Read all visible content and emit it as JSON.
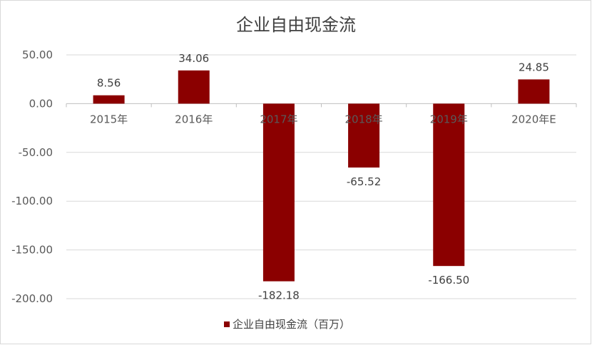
{
  "chart_data": {
    "type": "bar",
    "title": "企业自由现金流",
    "categories": [
      "2015年",
      "2016年",
      "2017年",
      "2018年",
      "2019年",
      "2020年E"
    ],
    "series": [
      {
        "name": "企业自由现金流（百万）",
        "values": [
          8.56,
          34.06,
          -182.18,
          -65.52,
          -166.5,
          24.85
        ],
        "labels": [
          "8.56",
          "34.06",
          "-182.18",
          "-65.52",
          "-166.50",
          "24.85"
        ]
      }
    ],
    "ylim": [
      -200,
      50
    ],
    "yticks": [
      50,
      0,
      -50,
      -100,
      -150,
      -200
    ],
    "ytick_labels": [
      "50.00",
      "0.00",
      "-50.00",
      "-100.00",
      "-150.00",
      "-200.00"
    ],
    "grid": true,
    "legend_position": "bottom",
    "bar_color": "#8b0000"
  }
}
